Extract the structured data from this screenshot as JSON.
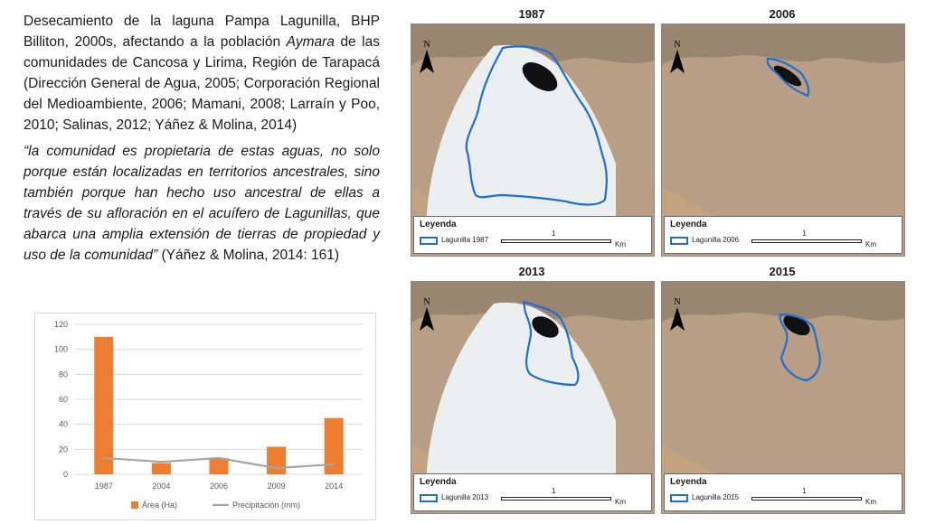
{
  "text": {
    "intro_plain": "Desecamiento de la laguna Pampa Lagunilla, BHP Billiton, 2000s, afectando a la población ",
    "intro_italic": "Aymara",
    "intro_rest": " de las comunidades de Cancosa y Lirima,  Región de Tarapacá (Dirección General de Agua, 2005; Corporación Regional del Medioambiente, 2006; Mamani, 2008; Larraín y Poo, 2010; Salinas, 2012; Yáñez & Molina, 2014)",
    "quote": "“la comunidad es propietaria de estas aguas, no solo porque están localizadas en territorios ancestrales, sino también porque han hecho uso ancestral de ellas a través de su afloración en el acuífero de Lagunillas, que abarca  una amplia extensión de tierras de propiedad y uso de la comunidad”",
    "citation": " (Yáñez & Molina, 2014: 161)"
  },
  "maps": [
    {
      "year": "1987",
      "legend_title": "Leyenda",
      "legend_label": "Lagunilla 1987",
      "scale_num": "1",
      "scale_unit": "Km",
      "north": "N"
    },
    {
      "year": "2006",
      "legend_title": "Leyenda",
      "legend_label": "Lagunilla 2006",
      "scale_num": "1",
      "scale_unit": "Km",
      "north": "N"
    },
    {
      "year": "2013",
      "legend_title": "Leyenda",
      "legend_label": "Lagunilla 2013",
      "scale_num": "1",
      "scale_unit": "Km",
      "north": "N"
    },
    {
      "year": "2015",
      "legend_title": "Leyenda",
      "legend_label": "Lagunilla 2015",
      "scale_num": "1",
      "scale_unit": "Km",
      "north": "N"
    }
  ],
  "colors": {
    "outline": "#1f6fd1",
    "bar": "#ed7d31",
    "line": "#a5a5a5"
  },
  "chart_data": {
    "type": "bar",
    "categories": [
      "1987",
      "2004",
      "2006",
      "2009",
      "2014"
    ],
    "series": [
      {
        "name": "Área (Ha)",
        "type": "bar",
        "values": [
          110,
          9,
          13,
          22,
          45
        ]
      },
      {
        "name": "Precipitación (mm)",
        "type": "line",
        "values": [
          13,
          10,
          13,
          5,
          8
        ]
      }
    ],
    "yticks": [
      "0",
      "20",
      "40",
      "60",
      "80",
      "100",
      "120"
    ],
    "ylim": [
      0,
      120
    ],
    "grid": true,
    "legend_position": "bottom"
  }
}
